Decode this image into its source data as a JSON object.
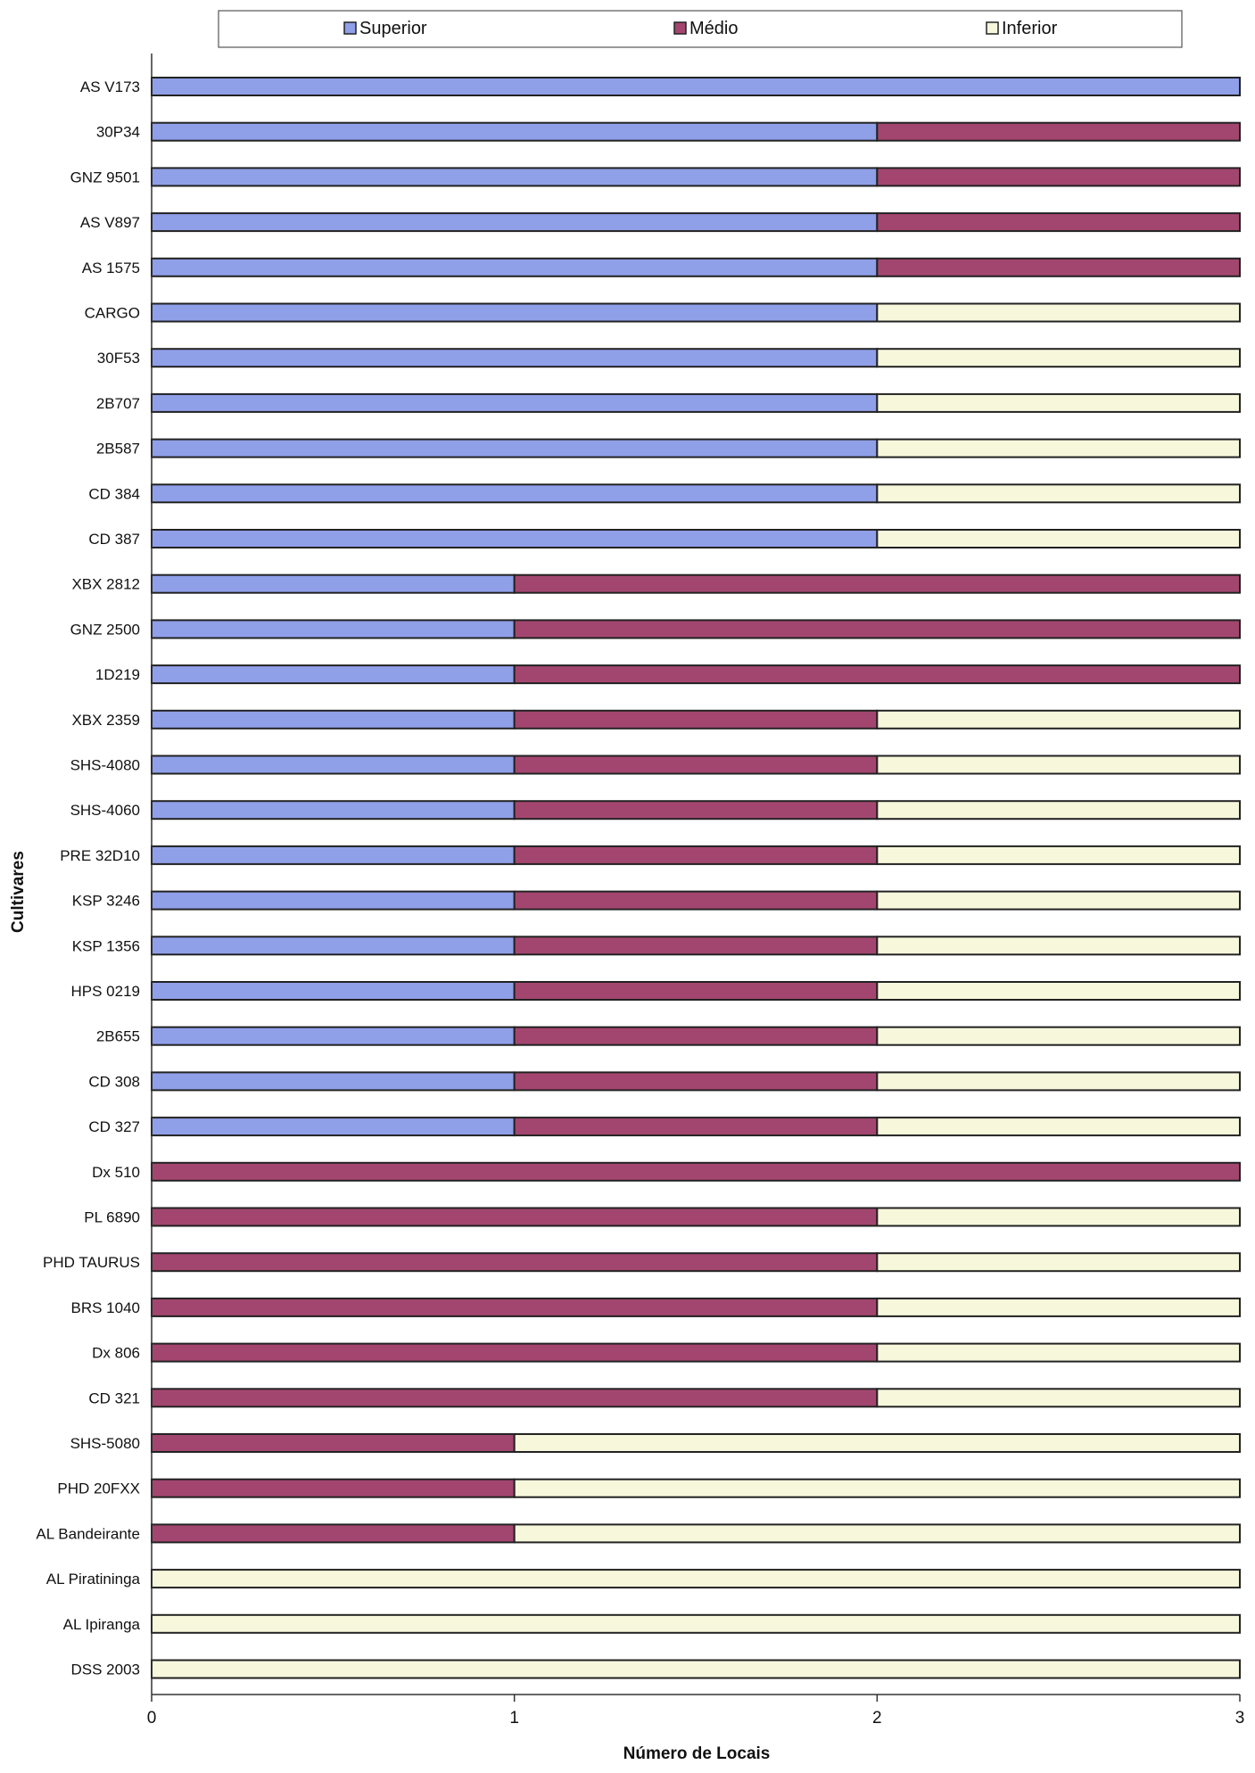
{
  "chart_data": {
    "type": "bar",
    "orientation": "horizontal",
    "stacked": true,
    "xlabel": "Número de Locais",
    "ylabel": "Cultivares",
    "xlim": [
      0,
      3
    ],
    "xticks": [
      "0",
      "1",
      "2",
      "3"
    ],
    "grid": false,
    "legend_position": "top",
    "categories": [
      "AS V173",
      "30P34",
      "GNZ 9501",
      "AS V897",
      "AS 1575",
      "CARGO",
      "30F53",
      "2B707",
      "2B587",
      "CD 384",
      "CD 387",
      "XBX 2812",
      "GNZ 2500",
      "1D219",
      "XBX 2359",
      "SHS-4080",
      "SHS-4060",
      "PRE 32D10",
      "KSP 3246",
      "KSP 1356",
      "HPS 0219",
      "2B655",
      "CD 308",
      "CD 327",
      "Dx 510",
      "PL 6890",
      "PHD TAURUS",
      "BRS 1040",
      "Dx 806",
      "CD 321",
      "SHS-5080",
      "PHD 20FXX",
      "AL Bandeirante",
      "AL Piratininga",
      "AL Ipiranga",
      "DSS 2003"
    ],
    "series": [
      {
        "name": "Superior",
        "color": "#8F9FE8",
        "values": [
          3,
          2,
          2,
          2,
          2,
          2,
          2,
          2,
          2,
          2,
          2,
          1,
          1,
          1,
          1,
          1,
          1,
          1,
          1,
          1,
          1,
          1,
          1,
          1,
          0,
          0,
          0,
          0,
          0,
          0,
          0,
          0,
          0,
          0,
          0,
          0
        ]
      },
      {
        "name": "Médio",
        "color": "#A3466F",
        "values": [
          0,
          1,
          1,
          1,
          1,
          0,
          0,
          0,
          0,
          0,
          0,
          2,
          2,
          2,
          1,
          1,
          1,
          1,
          1,
          1,
          1,
          1,
          1,
          1,
          3,
          2,
          2,
          2,
          2,
          2,
          1,
          1,
          1,
          0,
          0,
          0
        ]
      },
      {
        "name": "Inferior",
        "color": "#F7F7DC",
        "values": [
          0,
          0,
          0,
          0,
          0,
          1,
          1,
          1,
          1,
          1,
          1,
          0,
          0,
          0,
          1,
          1,
          1,
          1,
          1,
          1,
          1,
          1,
          1,
          1,
          0,
          1,
          1,
          1,
          1,
          1,
          2,
          2,
          2,
          3,
          3,
          3
        ]
      }
    ]
  }
}
